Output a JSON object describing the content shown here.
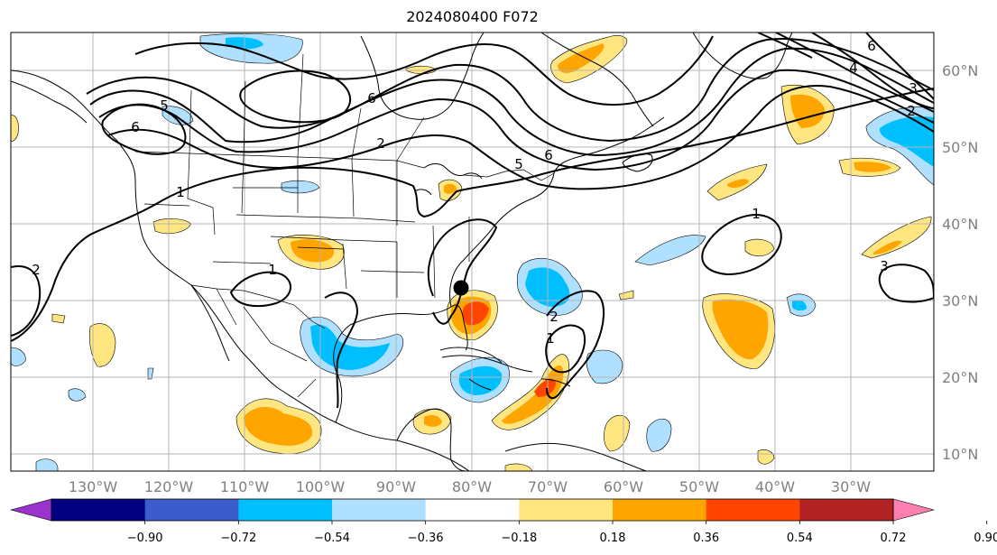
{
  "title": "2024080400 F072",
  "lon_labels": [
    "130°W",
    "120°W",
    "110°W",
    "100°W",
    "90°W",
    "80°W",
    "70°W",
    "60°W",
    "50°W",
    "40°W",
    "30°W"
  ],
  "lat_labels": [
    "60°N",
    "50°N",
    "40°N",
    "30°N",
    "20°N",
    "10°N"
  ],
  "colorbar": {
    "ticks": [
      "−0.90",
      "−0.72",
      "−0.54",
      "−0.36",
      "−0.18",
      "0.18",
      "0.36",
      "0.54",
      "0.72",
      "0.90"
    ],
    "colors": [
      "#9933cc",
      "#000080",
      "#3d5ccc",
      "#00bfff",
      "#b0e0ff",
      "#ffffff",
      "#ffe680",
      "#ffa500",
      "#ff4500",
      "#b22222",
      "#ff80b0"
    ]
  },
  "contour_labels": [
    "5",
    "6",
    "6",
    "1",
    "1",
    "1",
    "1",
    "2",
    "2",
    "2",
    "5",
    "6",
    "3",
    "3",
    "4",
    "6",
    "2"
  ],
  "colors": {
    "pos1": "#ffe680",
    "pos2": "#ffa500",
    "pos3": "#ff4500",
    "neg1": "#b0e0ff",
    "neg2": "#00bfff",
    "grid": "#b4b4b4",
    "tick": "#808080"
  }
}
